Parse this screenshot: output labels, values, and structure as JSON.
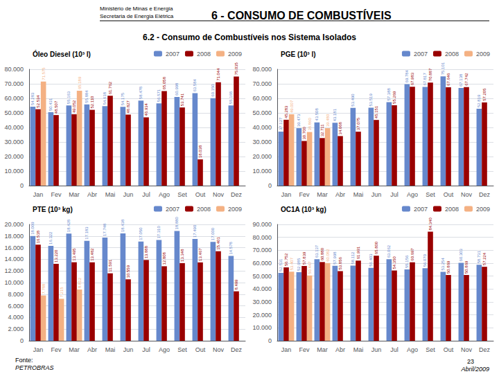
{
  "title": "6 - CONSUMO DE COMBUSTÍVEIS",
  "subtitle": "6.2 - Consumo de Combustíveis nos Sistema Isolados",
  "annotations": [
    "Ministério de Minas e Energia",
    "Secretaria de Energia Elétrica",
    "Fonte:",
    "PETROBRAS",
    "23",
    "Abril/2009"
  ],
  "chart_data": [
    {
      "type": "bar",
      "title": "Óleo Diesel (10³ l)",
      "categories": [
        "Jan",
        "Fev",
        "Mar",
        "Abr",
        "Mai",
        "Jun",
        "Jul",
        "Ago",
        "Set",
        "Out",
        "Nov",
        "Dez"
      ],
      "series": [
        {
          "name": "2007",
          "color": "#6688CC",
          "values": [
            54283,
            50431,
            55163,
            55884,
            54618,
            54175,
            58478,
            56571,
            60998,
            63584,
            60150,
            55168
          ],
          "value_labels": [
            "54.283",
            "50.431",
            "55.163",
            "55.884",
            "54.618",
            "54.175",
            "58.478",
            "56.571",
            "60.998",
            "63.584",
            "60.150",
            "55.168"
          ]
        },
        {
          "name": "2008",
          "color": "#990000",
          "values": [
            52534,
            48507,
            49052,
            52110,
            61762,
            48827,
            46934,
            65058,
            53741,
            18038,
            71044,
            75035
          ],
          "value_labels": [
            "52.534",
            "48.507",
            "49.052",
            "52.110",
            "61.762",
            "48.827",
            "46.934",
            "65.058",
            "53.741",
            "18.038",
            "71.044",
            "75.035"
          ]
        },
        {
          "name": "2009",
          "color": "#F4B183",
          "values": [
            71575,
            null,
            65189,
            null,
            null,
            null,
            null,
            null,
            null,
            null,
            null,
            null
          ],
          "value_labels": [
            "71.575",
            null,
            "65.189",
            null,
            null,
            null,
            null,
            null,
            null,
            null,
            null,
            null
          ]
        }
      ],
      "ylim": [
        0,
        80000
      ],
      "yticks": [
        0,
        {
          "value": 10000,
          "label": "10.000"
        },
        {
          "value": 20000,
          "label": "20.000"
        },
        {
          "value": 30000,
          "label": "30.000"
        },
        {
          "value": 40000,
          "label": "40.000"
        },
        {
          "value": 50000,
          "label": "50.000"
        },
        {
          "value": 60000,
          "label": "60.000"
        },
        {
          "value": 70000,
          "label": "70.000"
        },
        {
          "value": 80000,
          "label": "80.000"
        }
      ],
      "grid": true,
      "legend": "upper right",
      "data_labels": true
    },
    {
      "type": "bar",
      "title": "PGE (10³ l)",
      "categories": [
        "Jan",
        "Fev",
        "Mar",
        "Abr",
        "Mai",
        "Jun",
        "Jul",
        "Ago",
        "Set",
        "Out",
        "Nov",
        "Dez"
      ],
      "series": [
        {
          "name": "2007",
          "color": "#6688CC",
          "values": [
            37127,
            39473,
            43508,
            43181,
            53490,
            53519,
            57388,
            69784,
            67817,
            75101,
            67138,
            52819
          ],
          "value_labels": [
            "37.127",
            "39.473",
            "43.508",
            "43.181",
            "53.490",
            "53.519",
            "57.388",
            "69.784",
            "67.817",
            "75.101",
            "67.138",
            "52.819"
          ]
        },
        {
          "name": "2008",
          "color": "#990000",
          "values": [
            45283,
            30700,
            32711,
            34068,
            37075,
            45151,
            55269,
            67983,
            70887,
            67646,
            67742,
            57205
          ],
          "value_labels": [
            "45.283",
            "30.700",
            "32.711",
            "34.068",
            "37.075",
            "45.151",
            "55.269",
            "67.983",
            "70.887",
            "67.646",
            "67.742",
            "57.205"
          ]
        },
        {
          "name": "2009",
          "color": "#F4B183",
          "values": [
            49007,
            36860,
            39480,
            null,
            null,
            null,
            null,
            null,
            null,
            null,
            null,
            null
          ],
          "value_labels": [
            "49.007",
            "36.860",
            "39.480",
            null,
            null,
            null,
            null,
            null,
            null,
            null,
            null,
            null
          ]
        }
      ],
      "ylim": [
        0,
        80000
      ],
      "yticks": [
        0,
        {
          "value": 10000,
          "label": "10.000"
        },
        {
          "value": 20000,
          "label": "20.000"
        },
        {
          "value": 30000,
          "label": "30.000"
        },
        {
          "value": 40000,
          "label": "40.000"
        },
        {
          "value": 50000,
          "label": "50.000"
        },
        {
          "value": 60000,
          "label": "60.000"
        },
        {
          "value": 70000,
          "label": "70.000"
        },
        {
          "value": 80000,
          "label": "80.000"
        }
      ],
      "grid": true,
      "legend": "upper right",
      "data_labels": true
    },
    {
      "type": "bar",
      "title": "PTE (10³ kg)",
      "categories": [
        "Jan",
        "Fev",
        "Mar",
        "Abr",
        "Mai",
        "Jun",
        "Jul",
        "Ago",
        "Set",
        "Out",
        "Nov",
        "Dez"
      ],
      "series": [
        {
          "name": "2007",
          "color": "#6688CC",
          "values": [
            18009,
            16322,
            18428,
            17183,
            17748,
            18438,
            17050,
            17310,
            18880,
            17490,
            17000,
            14578
          ],
          "value_labels": [
            "18.009",
            "16.322",
            "18.428",
            "17.183",
            "17.748",
            "18.438",
            "17.050",
            "17.310",
            "18.880",
            "17.490",
            "17.000",
            "14.578"
          ]
        },
        {
          "name": "2008",
          "color": "#990000",
          "values": [
            16518,
            13220,
            13495,
            13482,
            11591,
            10559,
            13888,
            12808,
            13348,
            13467,
            15401,
            8499
          ],
          "value_labels": [
            "16.518",
            "13.220",
            "13.495",
            "13.482",
            "11.591",
            "10.559",
            "13.888",
            "12.808",
            "13.348",
            "13.467",
            "15.401",
            "8.499"
          ]
        },
        {
          "name": "2009",
          "color": "#F4B183",
          "values": [
            7788,
            7215,
            8812,
            null,
            null,
            null,
            null,
            null,
            null,
            null,
            null,
            null
          ],
          "value_labels": [
            "7.788",
            "7.215",
            "8.812",
            null,
            null,
            null,
            null,
            null,
            null,
            null,
            null,
            null
          ]
        }
      ],
      "ylim": [
        0,
        20000
      ],
      "yticks": [
        0,
        {
          "value": 2000,
          "label": "2.000"
        },
        {
          "value": 4000,
          "label": "4.000"
        },
        {
          "value": 6000,
          "label": "6.000"
        },
        {
          "value": 8000,
          "label": "8.000"
        },
        {
          "value": 10000,
          "label": "10.000"
        },
        {
          "value": 12000,
          "label": "12.000"
        },
        {
          "value": 14000,
          "label": "14.000"
        },
        {
          "value": 16000,
          "label": "16.000"
        },
        {
          "value": 18000,
          "label": "18.000"
        },
        {
          "value": 20000,
          "label": "20.000"
        }
      ],
      "grid": true,
      "legend": "upper right",
      "data_labels": true
    },
    {
      "type": "bar",
      "title": "OC1A (10³ kg)",
      "categories": [
        "Jan",
        "Fev",
        "Mar",
        "Abr",
        "Mai",
        "Jun",
        "Jul",
        "Ago",
        "Set",
        "Out",
        "Nov",
        "Dez"
      ],
      "series": [
        {
          "name": "2007",
          "color": "#6688CC",
          "values": [
            52531,
            52985,
            63137,
            57998,
            58112,
            56403,
            63062,
            55156,
            56070,
            53254,
            60303,
            58731
          ],
          "value_labels": [
            "52.531",
            "52.985",
            "63.137",
            "57.998",
            "58.112",
            "56.403",
            "63.062",
            "55.156",
            "56.070",
            "53.254",
            "60.303",
            "58.731"
          ]
        },
        {
          "name": "2008",
          "color": "#990000",
          "values": [
            56752,
            57839,
            60880,
            53856,
            61991,
            65800,
            54350,
            60697,
            84340,
            50869,
            50869,
            57224
          ],
          "value_labels": [
            "56.752",
            "57.839",
            "60.880",
            "53.856",
            "61.991",
            "65.800",
            "54.350",
            "60.697",
            "84.340",
            "50.869",
            "50.869",
            "57.224"
          ]
        },
        {
          "name": "2009",
          "color": "#F4B183",
          "values": [
            53407,
            50447,
            60082,
            null,
            null,
            null,
            null,
            null,
            null,
            null,
            null,
            null
          ],
          "value_labels": [
            "53.407",
            "50.447",
            "60.082",
            null,
            null,
            null,
            null,
            null,
            null,
            null,
            null,
            null
          ]
        }
      ],
      "ylim": [
        0,
        90000
      ],
      "yticks": [
        0,
        {
          "value": 10000,
          "label": "10.000"
        },
        {
          "value": 20000,
          "label": "20.000"
        },
        {
          "value": 30000,
          "label": "30.000"
        },
        {
          "value": 40000,
          "label": "40.000"
        },
        {
          "value": 50000,
          "label": "50.000"
        },
        {
          "value": 60000,
          "label": "60.000"
        },
        {
          "value": 70000,
          "label": "70.000"
        },
        {
          "value": 80000,
          "label": "80.000"
        },
        {
          "value": 90000,
          "label": "90.000"
        }
      ],
      "grid": true,
      "legend": "upper right",
      "data_labels": true
    }
  ]
}
